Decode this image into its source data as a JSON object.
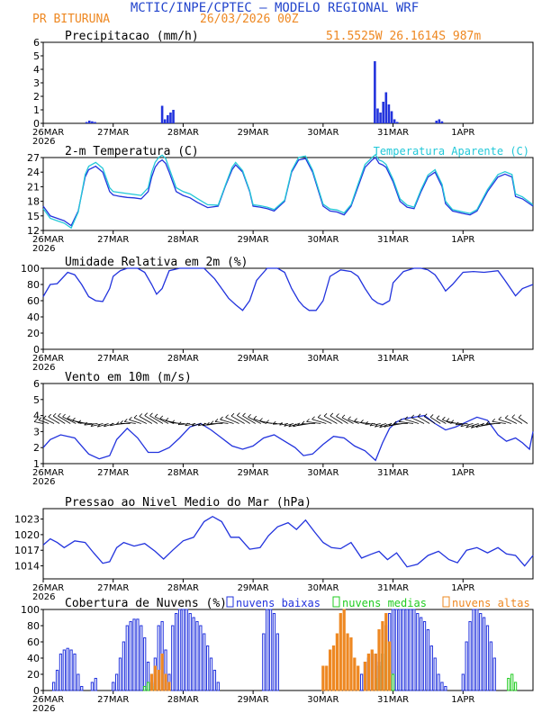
{
  "header": {
    "title": "MCTIC/INPE/CPTEC — MODELO REGIONAL WRF",
    "location": "PR BITURUNA",
    "run": "26/03/2026 00Z",
    "coords": "51.5525W  26.1614S  987m"
  },
  "colors": {
    "blue": "#2233dd",
    "cyan": "#22c8d8",
    "orange": "#ee8822",
    "green": "#22cc22",
    "title_blue": "#2244cc"
  },
  "x_ticks": [
    "26MAR",
    "27MAR",
    "28MAR",
    "29MAR",
    "30MAR",
    "31MAR",
    "1APR"
  ],
  "x_year": "2026",
  "chart_data": [
    {
      "id": "precip",
      "type": "bar",
      "title": "Precipitacao (mm/h)",
      "ylim": [
        0,
        6
      ],
      "yticks": [
        0,
        1,
        2,
        3,
        4,
        5,
        6
      ],
      "x": [
        0.62,
        0.66,
        0.7,
        0.74,
        1.7,
        1.74,
        1.78,
        1.82,
        1.86,
        4.74,
        4.78,
        4.82,
        4.86,
        4.9,
        4.94,
        4.98,
        5.02,
        5.06,
        5.62,
        5.66,
        5.7
      ],
      "values": [
        0.1,
        0.2,
        0.15,
        0.1,
        1.3,
        0.3,
        0.6,
        0.8,
        1.0,
        4.6,
        1.1,
        0.8,
        1.6,
        2.3,
        1.4,
        0.9,
        0.3,
        0.1,
        0.2,
        0.3,
        0.15
      ]
    },
    {
      "id": "temp",
      "type": "line",
      "title": "2-m Temperatura (C)",
      "legend": "Temperatura Aparente (C)",
      "ylim": [
        12,
        27
      ],
      "yticks": [
        12,
        15,
        18,
        21,
        24,
        27
      ],
      "series": [
        {
          "name": "2-m Temperatura (C)",
          "color": "blue",
          "x": [
            0,
            0.1,
            0.2,
            0.3,
            0.4,
            0.5,
            0.6,
            0.65,
            0.75,
            0.85,
            0.95,
            1,
            1.1,
            1.2,
            1.3,
            1.4,
            1.5,
            1.55,
            1.6,
            1.65,
            1.7,
            1.75,
            1.8,
            1.9,
            2,
            2.1,
            2.2,
            2.35,
            2.5,
            2.6,
            2.7,
            2.75,
            2.85,
            2.95,
            3,
            3.1,
            3.2,
            3.3,
            3.45,
            3.55,
            3.65,
            3.75,
            3.85,
            4,
            4.1,
            4.2,
            4.3,
            4.4,
            4.5,
            4.6,
            4.7,
            4.75,
            4.8,
            4.85,
            4.9,
            5,
            5.1,
            5.2,
            5.3,
            5.4,
            5.5,
            5.6,
            5.7,
            5.75,
            5.85,
            6,
            6.1,
            6.2,
            6.35,
            6.5,
            6.6,
            6.7,
            6.75,
            6.85,
            7
          ],
          "values": [
            17,
            15,
            14.5,
            14,
            13,
            16,
            23,
            24.5,
            25.2,
            24,
            20,
            19.3,
            19,
            18.8,
            18.7,
            18.5,
            20,
            23,
            25,
            26,
            26.5,
            25.8,
            24,
            20,
            19.2,
            18.7,
            17.8,
            16.7,
            17,
            21,
            24.5,
            25.5,
            24,
            20,
            17,
            16.8,
            16.5,
            16,
            18,
            24,
            26.5,
            26.8,
            24,
            17,
            16,
            15.8,
            15.2,
            17,
            21,
            25,
            26.5,
            27,
            25.8,
            25.5,
            25,
            22,
            18,
            16.8,
            16.5,
            20,
            23,
            24,
            21,
            17.5,
            16,
            15.5,
            15.2,
            16,
            20,
            23,
            23.6,
            23,
            19,
            18.5,
            17
          ]
        },
        {
          "name": "Temperatura Aparente (C)",
          "color": "cyan",
          "x": [
            0,
            0.1,
            0.2,
            0.3,
            0.4,
            0.5,
            0.6,
            0.65,
            0.75,
            0.85,
            0.95,
            1,
            1.1,
            1.2,
            1.3,
            1.4,
            1.5,
            1.55,
            1.6,
            1.65,
            1.7,
            1.75,
            1.8,
            1.9,
            2,
            2.1,
            2.2,
            2.35,
            2.5,
            2.6,
            2.7,
            2.75,
            2.85,
            2.95,
            3,
            3.1,
            3.2,
            3.3,
            3.45,
            3.55,
            3.65,
            3.75,
            3.85,
            4,
            4.1,
            4.2,
            4.3,
            4.4,
            4.5,
            4.6,
            4.7,
            4.75,
            4.8,
            4.85,
            4.9,
            5,
            5.1,
            5.2,
            5.3,
            5.4,
            5.5,
            5.6,
            5.7,
            5.75,
            5.85,
            6,
            6.1,
            6.2,
            6.35,
            6.5,
            6.6,
            6.7,
            6.75,
            6.85,
            7
          ],
          "values": [
            16.5,
            14.5,
            14,
            13.5,
            12.5,
            15.8,
            23.5,
            25.2,
            26,
            24.8,
            20.8,
            20,
            19.8,
            19.6,
            19.4,
            19.2,
            20.8,
            24,
            26,
            27,
            27.5,
            26.8,
            24.8,
            20.8,
            20,
            19.5,
            18.6,
            17.3,
            17.2,
            21.2,
            25,
            26,
            24.3,
            20.2,
            17.3,
            17.1,
            16.8,
            16.3,
            18.2,
            24.3,
            27,
            27.3,
            24.4,
            17.4,
            16.4,
            16.2,
            15.6,
            17.3,
            21.5,
            25.6,
            27,
            27.6,
            26.5,
            26.2,
            25.6,
            22.5,
            18.5,
            17.2,
            16.8,
            20.4,
            23.4,
            24.5,
            21.5,
            18,
            16.3,
            15.8,
            15.5,
            16.3,
            20.4,
            23.5,
            24.1,
            23.5,
            19.5,
            18.9,
            17.3
          ]
        }
      ]
    },
    {
      "id": "rh",
      "type": "line",
      "title": "Umidade Relativa em 2m (%)",
      "ylim": [
        0,
        100
      ],
      "yticks": [
        0,
        20,
        40,
        60,
        80,
        100
      ],
      "series": [
        {
          "name": "Umidade Relativa",
          "color": "blue",
          "x": [
            0,
            0.1,
            0.2,
            0.35,
            0.45,
            0.55,
            0.65,
            0.75,
            0.85,
            0.95,
            1,
            1.1,
            1.2,
            1.35,
            1.45,
            1.55,
            1.62,
            1.7,
            1.8,
            1.95,
            2.1,
            2.3,
            2.45,
            2.55,
            2.65,
            2.75,
            2.85,
            2.95,
            3.05,
            3.2,
            3.35,
            3.45,
            3.55,
            3.65,
            3.72,
            3.8,
            3.9,
            4,
            4.1,
            4.25,
            4.4,
            4.5,
            4.6,
            4.7,
            4.78,
            4.85,
            4.95,
            5,
            5.15,
            5.3,
            5.4,
            5.5,
            5.6,
            5.68,
            5.75,
            5.85,
            6,
            6.15,
            6.3,
            6.4,
            6.5,
            6.6,
            6.68,
            6.75,
            6.85,
            7
          ],
          "values": [
            65,
            80,
            81,
            95,
            92,
            80,
            65,
            60,
            59,
            75,
            90,
            97,
            100,
            100,
            95,
            80,
            68,
            75,
            97,
            100,
            100,
            100,
            87,
            75,
            63,
            55,
            48,
            60,
            85,
            100,
            100,
            95,
            75,
            60,
            53,
            48,
            48,
            60,
            90,
            98,
            96,
            90,
            75,
            62,
            57,
            55,
            60,
            82,
            96,
            100,
            100,
            98,
            92,
            82,
            72,
            80,
            95,
            96,
            95,
            96,
            97,
            85,
            75,
            66,
            75,
            80
          ]
        }
      ]
    },
    {
      "id": "wind",
      "type": "line",
      "title": "Vento em 10m (m/s)",
      "ylim": [
        1,
        6
      ],
      "yticks": [
        1,
        2,
        3,
        4,
        5,
        6
      ],
      "series": [
        {
          "name": "Vento em 10m (m/s)",
          "color": "blue",
          "x": [
            0,
            0.1,
            0.25,
            0.45,
            0.55,
            0.65,
            0.8,
            0.95,
            1.05,
            1.2,
            1.35,
            1.5,
            1.65,
            1.8,
            1.95,
            2.1,
            2.25,
            2.4,
            2.55,
            2.7,
            2.85,
            3,
            3.15,
            3.3,
            3.45,
            3.6,
            3.72,
            3.85,
            4,
            4.15,
            4.3,
            4.45,
            4.6,
            4.75,
            4.85,
            4.95,
            5.05,
            5.15,
            5.3,
            5.45,
            5.6,
            5.75,
            5.9,
            6.05,
            6.2,
            6.35,
            6.5,
            6.62,
            6.75,
            6.85,
            6.95,
            7
          ],
          "values": [
            2,
            2.5,
            2.8,
            2.6,
            2.1,
            1.6,
            1.3,
            1.5,
            2.5,
            3.2,
            2.6,
            1.7,
            1.7,
            2,
            2.6,
            3.3,
            3.5,
            3.1,
            2.6,
            2.1,
            1.9,
            2.1,
            2.6,
            2.8,
            2.4,
            2,
            1.5,
            1.6,
            2.2,
            2.7,
            2.6,
            2.1,
            1.8,
            1.2,
            2.3,
            3.2,
            3.6,
            3.8,
            3.9,
            4,
            3.5,
            3.1,
            3.3,
            3.6,
            3.9,
            3.7,
            2.8,
            2.4,
            2.6,
            2.3,
            1.9,
            3
          ]
        }
      ],
      "vectors": {
        "label": "wind direction barbs",
        "baseline_value": 3.5
      }
    },
    {
      "id": "pres",
      "type": "line",
      "title": "Pressao ao Nivel Medio do Mar (hPa)",
      "ylim": [
        1011.5,
        1025
      ],
      "yticks": [
        1014,
        1017,
        1020,
        1023
      ],
      "series": [
        {
          "name": "Pressao",
          "color": "blue",
          "x": [
            0,
            0.1,
            0.2,
            0.3,
            0.45,
            0.6,
            0.72,
            0.85,
            0.95,
            1.05,
            1.15,
            1.3,
            1.45,
            1.6,
            1.72,
            1.85,
            2,
            2.15,
            2.3,
            2.42,
            2.55,
            2.68,
            2.8,
            2.95,
            3.1,
            3.22,
            3.35,
            3.5,
            3.62,
            3.75,
            3.88,
            4,
            4.12,
            4.25,
            4.4,
            4.55,
            4.68,
            4.8,
            4.92,
            5.05,
            5.2,
            5.35,
            5.5,
            5.65,
            5.8,
            5.92,
            6.05,
            6.2,
            6.35,
            6.5,
            6.62,
            6.75,
            6.88,
            7
          ],
          "values": [
            1018,
            1019.2,
            1018.5,
            1017.5,
            1018.8,
            1018.5,
            1016.5,
            1014.5,
            1014.8,
            1017.5,
            1018.5,
            1017.8,
            1018.3,
            1016.8,
            1015.3,
            1017,
            1018.8,
            1019.5,
            1022.5,
            1023.5,
            1022.5,
            1019.5,
            1019.5,
            1017.2,
            1017.5,
            1019.8,
            1021.5,
            1022.3,
            1021,
            1022.8,
            1020.5,
            1018.5,
            1017.5,
            1017.3,
            1018.5,
            1015.5,
            1016.2,
            1016.8,
            1015.2,
            1016.5,
            1013.8,
            1014.3,
            1016,
            1016.8,
            1015.2,
            1014.6,
            1017,
            1017.5,
            1016.5,
            1017.5,
            1016.3,
            1016,
            1014,
            1016
          ]
        }
      ]
    },
    {
      "id": "clouds",
      "type": "bar",
      "title": "Cobertura de Nuvens (%)",
      "ylim": [
        0,
        100
      ],
      "yticks": [
        0,
        20,
        40,
        60,
        80,
        100
      ],
      "series": [
        {
          "name": "nuvens baixas",
          "color": "blue",
          "style": "hollow",
          "x": [
            0.15,
            0.2,
            0.25,
            0.3,
            0.35,
            0.4,
            0.45,
            0.5,
            0.55,
            0.7,
            0.75,
            1,
            1.05,
            1.1,
            1.15,
            1.2,
            1.25,
            1.3,
            1.35,
            1.4,
            1.45,
            1.5,
            1.55,
            1.6,
            1.65,
            1.7,
            1.75,
            1.8,
            1.85,
            1.9,
            1.95,
            2,
            2.05,
            2.1,
            2.15,
            2.2,
            2.25,
            2.3,
            2.35,
            2.4,
            2.45,
            2.5,
            3.15,
            3.2,
            3.25,
            3.3,
            3.35,
            4.55,
            4.6,
            4.65,
            4.7,
            4.75,
            4.8,
            4.85,
            4.9,
            4.95,
            5,
            5.05,
            5.1,
            5.15,
            5.2,
            5.25,
            5.3,
            5.35,
            5.4,
            5.45,
            5.5,
            5.55,
            5.6,
            5.65,
            5.7,
            5.75,
            6,
            6.05,
            6.1,
            6.15,
            6.2,
            6.25,
            6.3,
            6.35,
            6.4,
            6.45
          ],
          "values": [
            10,
            25,
            45,
            50,
            52,
            50,
            45,
            20,
            5,
            10,
            15,
            10,
            20,
            40,
            60,
            80,
            85,
            88,
            88,
            80,
            65,
            35,
            10,
            40,
            80,
            85,
            50,
            20,
            80,
            95,
            100,
            100,
            100,
            95,
            90,
            85,
            80,
            70,
            55,
            40,
            25,
            10,
            70,
            100,
            100,
            95,
            70,
            20,
            35,
            40,
            45,
            45,
            35,
            45,
            80,
            95,
            100,
            100,
            100,
            100,
            100,
            100,
            100,
            95,
            90,
            85,
            75,
            55,
            40,
            20,
            10,
            5,
            20,
            60,
            85,
            100,
            100,
            95,
            90,
            80,
            60,
            40
          ]
        },
        {
          "name": "nuvens medias",
          "color": "green",
          "style": "hollow",
          "x": [
            1.45,
            1.5,
            1.55,
            1.6,
            4.75,
            4.8,
            4.85,
            4.9,
            4.95,
            5,
            6.65,
            6.7,
            6.75
          ],
          "values": [
            5,
            10,
            8,
            5,
            15,
            30,
            45,
            60,
            50,
            20,
            15,
            20,
            10
          ]
        },
        {
          "name": "nuvens altas",
          "color": "orange",
          "style": "filled",
          "x": [
            1.55,
            1.6,
            1.65,
            1.7,
            1.75,
            1.8,
            4,
            4.05,
            4.1,
            4.15,
            4.2,
            4.25,
            4.3,
            4.35,
            4.4,
            4.45,
            4.5,
            4.6,
            4.65,
            4.7,
            4.75,
            4.8,
            4.85,
            4.9,
            4.95
          ],
          "values": [
            20,
            30,
            25,
            45,
            20,
            10,
            30,
            30,
            50,
            55,
            70,
            95,
            100,
            70,
            65,
            40,
            30,
            35,
            45,
            50,
            45,
            75,
            85,
            95,
            60
          ]
        }
      ]
    }
  ]
}
